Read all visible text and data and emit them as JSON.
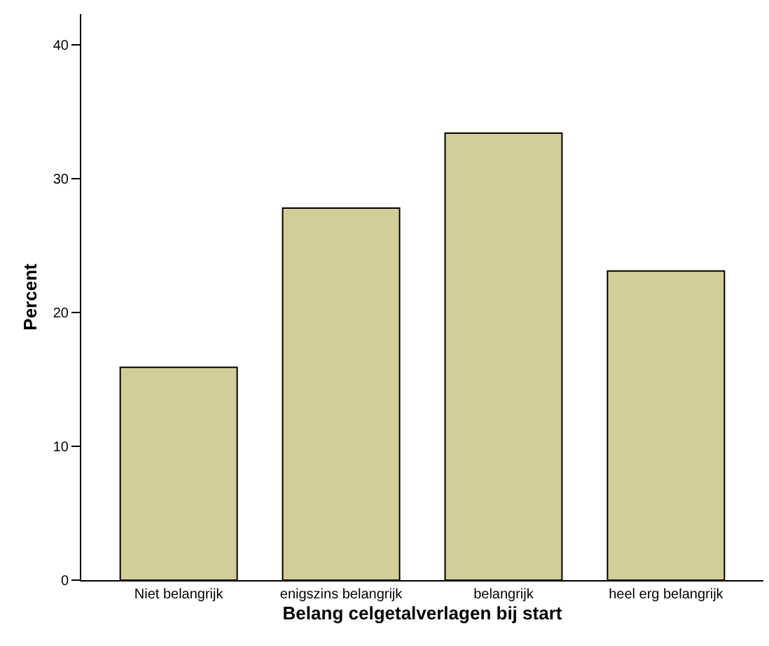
{
  "chart_data": {
    "type": "bar",
    "xlabel": "Belang celgetalverlagen bij start",
    "ylabel": "Percent",
    "categories": [
      "Niet belangrijk",
      "enigszins belangrijk",
      "belangrijk",
      "heel erg belangrijk"
    ],
    "values": [
      15.9,
      27.8,
      33.4,
      23.1
    ],
    "color": "#d3ce97",
    "ylim": [
      0,
      42.3
    ],
    "yticks": [
      0,
      10,
      20,
      30,
      40
    ],
    "grid": false,
    "legend": false
  }
}
